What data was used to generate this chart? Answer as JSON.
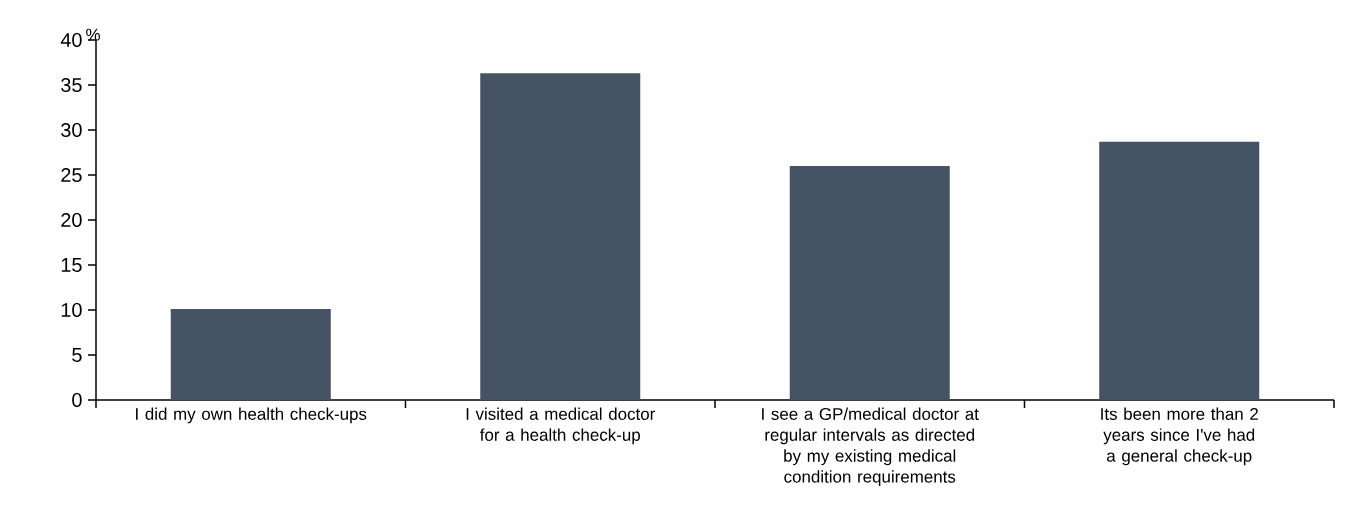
{
  "chart_data": {
    "type": "bar",
    "ylabel": "%",
    "categories": [
      "I did my own health check-ups",
      "I visited a medical doctor for a health check-up",
      "I see a GP/medical doctor at regular intervals as directed by my existing medical condition requirements",
      "Its been more than 2 years since I've had a general check-up"
    ],
    "values": [
      10.1,
      36.3,
      26.0,
      28.7
    ],
    "color": "#455364",
    "ylim": [
      0,
      40
    ],
    "yticks": [
      0,
      5,
      10,
      15,
      20,
      25,
      30,
      35,
      40
    ],
    "grid": false
  }
}
